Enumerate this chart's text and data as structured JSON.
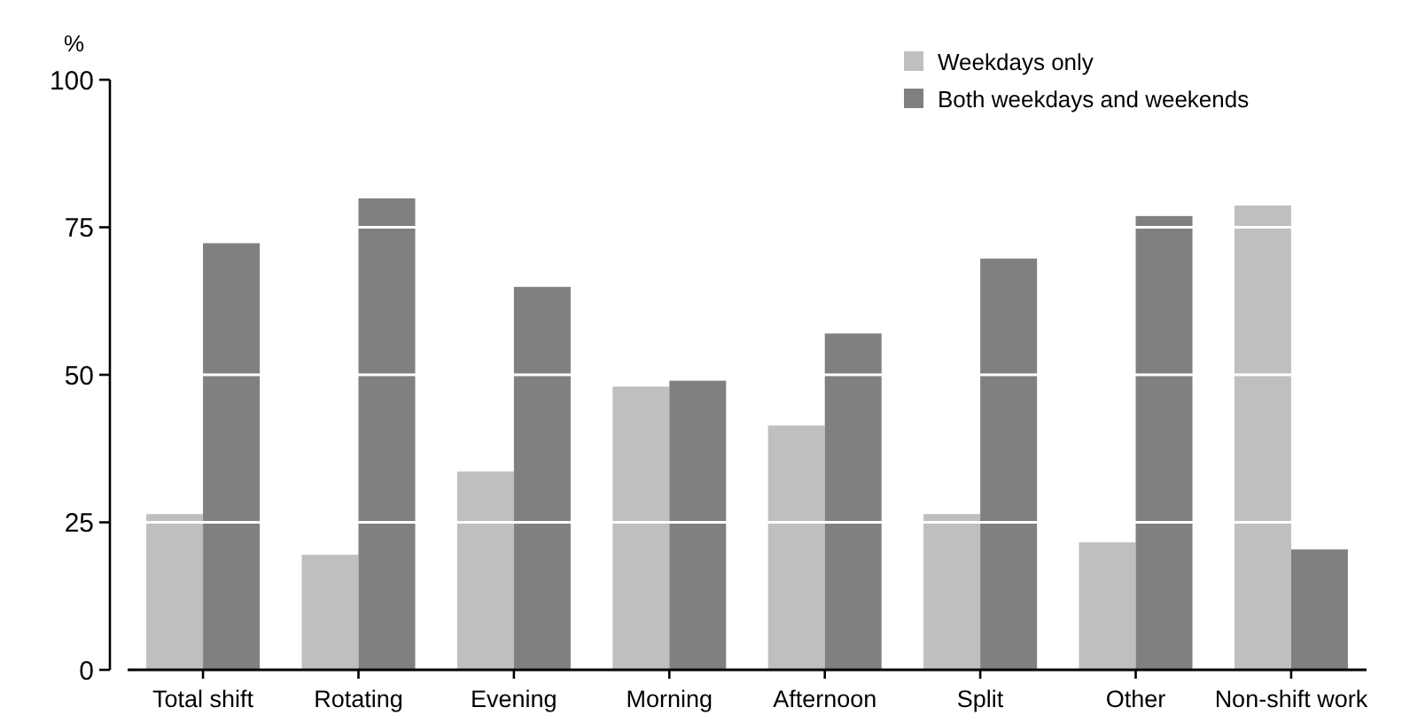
{
  "chart_data": {
    "type": "bar",
    "ylabel": "%",
    "categories": [
      "Total shift",
      "Rotating",
      "Evening",
      "Morning",
      "Afternoon",
      "Split",
      "Other",
      "Non-shift work"
    ],
    "series": [
      {
        "name": "Weekdays only",
        "color": "#bfbfbf",
        "values": [
          26.4,
          19.5,
          33.6,
          48,
          41.4,
          26.4,
          21.6,
          78.7
        ]
      },
      {
        "name": "Both weekdays and weekends",
        "color": "#808080",
        "values": [
          72.3,
          79.9,
          64.9,
          49,
          57,
          69.7,
          76.9,
          20.4
        ]
      }
    ],
    "ylim": [
      0,
      100
    ],
    "yticks": [
      0,
      25,
      50,
      75,
      100
    ],
    "grid": "y",
    "legend": "top right"
  }
}
